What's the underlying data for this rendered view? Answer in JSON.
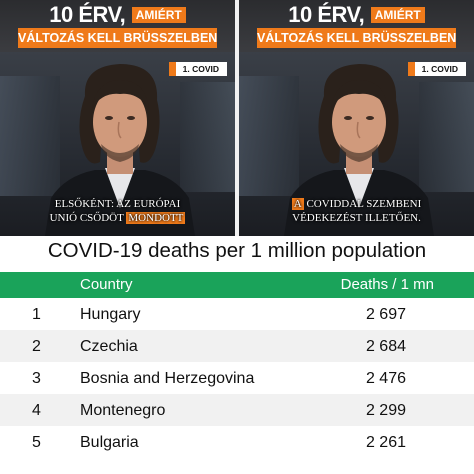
{
  "panels": [
    {
      "banner": {
        "count": "10 ÉRV,",
        "highlight": "AMIÉRT",
        "subtitle": "VÁLTOZÁS KELL BRÜSSZELBEN"
      },
      "tag": "1. COVID",
      "caption": [
        {
          "text": "ELSŐKÉNT: AZ EURÓPAI",
          "hl": false,
          "br": true
        },
        {
          "text": "UNIÓ CSŐDÖT ",
          "hl": false,
          "br": false
        },
        {
          "text": "MONDOTT",
          "hl": true,
          "br": false
        }
      ]
    },
    {
      "banner": {
        "count": "10 ÉRV,",
        "highlight": "AMIÉRT",
        "subtitle": "VÁLTOZÁS KELL BRÜSSZELBEN"
      },
      "tag": "1. COVID",
      "caption": [
        {
          "text": "A",
          "hl": true,
          "br": false
        },
        {
          "text": " COVIDDAL SZEMBENI",
          "hl": false,
          "br": true
        },
        {
          "text": "VÉDEKEZÉST ILLETŐEN.",
          "hl": false,
          "br": false
        }
      ]
    }
  ],
  "table": {
    "title": "COVID-19 deaths per 1 million population",
    "col_country": "Country",
    "col_deaths": "Deaths / 1 mn",
    "rows": [
      {
        "rank": "1",
        "country": "Hungary",
        "deaths": "2 697"
      },
      {
        "rank": "2",
        "country": "Czechia",
        "deaths": "2 684"
      },
      {
        "rank": "3",
        "country": "Bosnia and Herzegovina",
        "deaths": "2 476"
      },
      {
        "rank": "4",
        "country": "Montenegro",
        "deaths": "2 299"
      },
      {
        "rank": "5",
        "country": "Bulgaria",
        "deaths": "2 261"
      }
    ]
  },
  "colors": {
    "accent_orange": "#ef7a1a",
    "table_header_green": "#1aa35a"
  }
}
